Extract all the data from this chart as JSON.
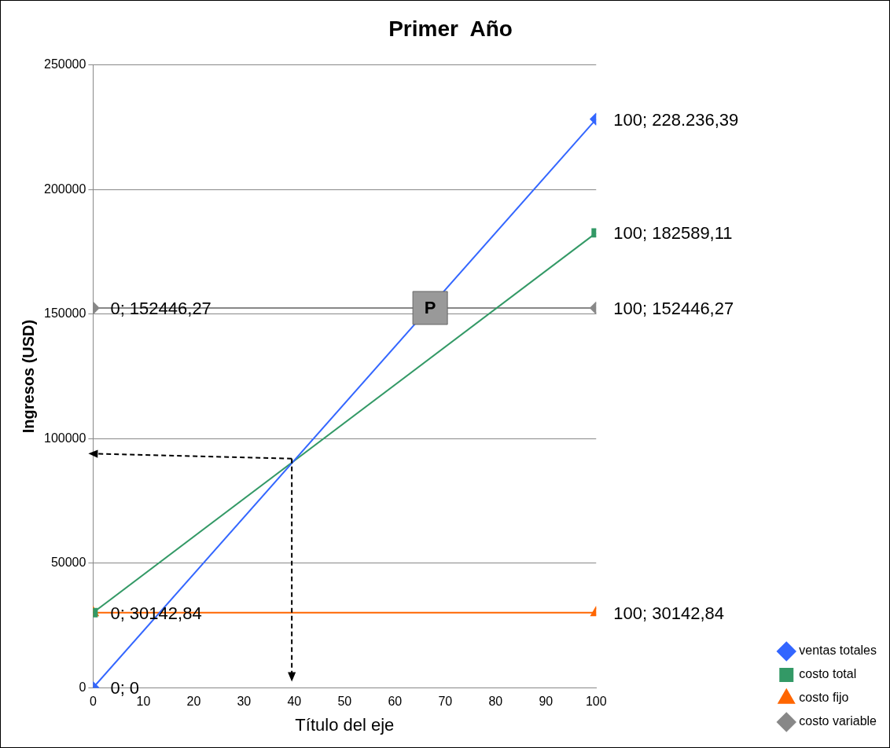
{
  "chart_data": {
    "type": "line",
    "title": "Primer  Año",
    "xlabel": "Título del eje",
    "ylabel": "Ingresos (USD)",
    "xlim": [
      0,
      100
    ],
    "xticks": [
      0,
      10,
      20,
      30,
      40,
      50,
      60,
      70,
      80,
      90,
      100
    ],
    "ylim": [
      0,
      250000
    ],
    "yticks": [
      0,
      50000,
      100000,
      150000,
      200000,
      250000
    ],
    "grid": "y",
    "legend": "right",
    "x": [
      0,
      100
    ],
    "series": [
      {
        "name": "ventas totales",
        "color": "#3366ff",
        "marker": "diamond",
        "values": [
          0,
          228236.39
        ],
        "value_labels": [
          "0; 0",
          "100; 228.236,39"
        ]
      },
      {
        "name": "costo total",
        "color": "#339966",
        "marker": "square",
        "values": [
          30142.84,
          182589.11
        ],
        "value_labels": [
          null,
          "100; 182589,11"
        ]
      },
      {
        "name": "costo fijo",
        "color": "#ff6600",
        "marker": "triangle",
        "values": [
          30142.84,
          30142.84
        ],
        "value_labels": [
          "0; 30142,84",
          "100; 30142,84"
        ]
      },
      {
        "name": "costo variable",
        "color": "#888888",
        "marker": "diamond",
        "values": [
          152446.27,
          152446.27
        ],
        "value_labels": [
          "0; 152446,27",
          "100; 152446,27"
        ]
      }
    ],
    "annotations": [
      {
        "text": "P",
        "x": 67,
        "y": 152446
      }
    ]
  }
}
